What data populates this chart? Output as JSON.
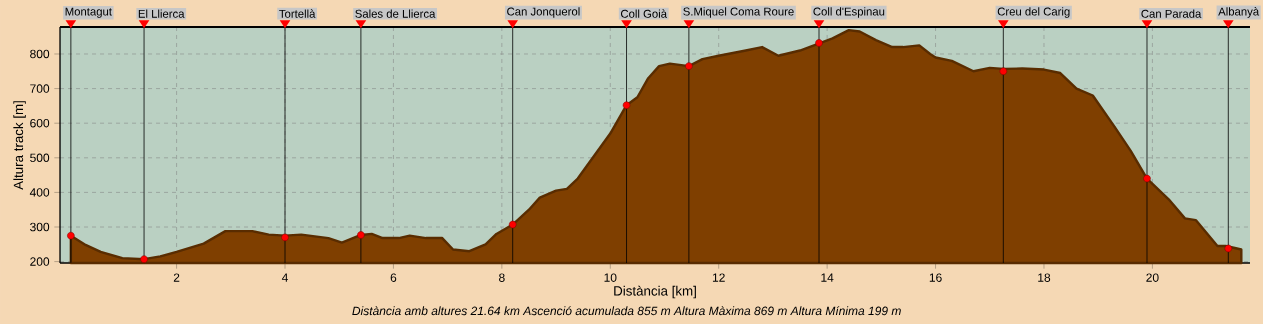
{
  "chart_data": {
    "type": "area",
    "xlabel": "Distància [km]",
    "ylabel": "Altura track [m]",
    "xlim": [
      -0.15,
      21.8
    ],
    "ylim": [
      196,
      878
    ],
    "xticks": [
      2,
      4,
      6,
      8,
      10,
      12,
      14,
      16,
      18,
      20
    ],
    "yticks": [
      200,
      300,
      400,
      500,
      600,
      700,
      800
    ],
    "grid": true,
    "series": [
      {
        "color": "#7f3f00",
        "x": [
          0.05,
          0.3,
          0.6,
          1.0,
          1.4,
          1.7,
          2.0,
          2.5,
          2.9,
          3.4,
          3.7,
          4.0,
          4.3,
          4.8,
          5.05,
          5.4,
          5.6,
          5.8,
          6.1,
          6.3,
          6.6,
          6.9,
          7.1,
          7.4,
          7.7,
          7.9,
          8.2,
          8.5,
          8.7,
          9.0,
          9.2,
          9.4,
          9.7,
          10.0,
          10.3,
          10.5,
          10.7,
          10.9,
          11.1,
          11.45,
          11.7,
          12.0,
          12.5,
          12.8,
          13.1,
          13.5,
          14.1,
          14.4,
          14.6,
          14.9,
          15.2,
          15.4,
          15.7,
          15.9,
          16.0,
          16.3,
          16.7,
          17.0,
          17.25,
          17.6,
          18.0,
          18.3,
          18.6,
          18.9,
          19.3,
          19.6,
          19.9,
          20.3,
          20.6,
          20.8,
          21.2,
          21.35,
          21.5,
          21.64
        ],
        "values": [
          275,
          250,
          228,
          210,
          207,
          215,
          228,
          252,
          288,
          288,
          278,
          275,
          278,
          268,
          255,
          277,
          280,
          268,
          268,
          275,
          268,
          268,
          235,
          230,
          250,
          280,
          307,
          350,
          385,
          405,
          410,
          440,
          505,
          570,
          652,
          675,
          730,
          765,
          772,
          765,
          785,
          795,
          810,
          820,
          795,
          810,
          845,
          869,
          865,
          840,
          820,
          820,
          825,
          800,
          790,
          780,
          750,
          760,
          757,
          758,
          755,
          745,
          700,
          680,
          590,
          520,
          440,
          380,
          325,
          320,
          245,
          245,
          240,
          235
        ]
      },
      {
        "type": "scatter",
        "marker": "circle",
        "color": "#ff0000",
        "x": [
          0.05,
          1.4,
          4.0,
          5.4,
          8.2,
          10.3,
          11.45,
          13.85,
          17.25,
          19.9,
          21.4
        ],
        "values": [
          275,
          207,
          270,
          277,
          307,
          652,
          765,
          832,
          750,
          440,
          238
        ]
      }
    ],
    "ref_lines": [
      {
        "axis": "x",
        "value": 0.05,
        "label": "Montagut",
        "color": "#000000"
      },
      {
        "axis": "x",
        "value": 1.4,
        "label": "El Llierca",
        "color": "#000000"
      },
      {
        "axis": "x",
        "value": 4.0,
        "label": "Tortellà",
        "color": "#000000"
      },
      {
        "axis": "x",
        "value": 5.4,
        "label": "Sales de Llierca",
        "color": "#000000"
      },
      {
        "axis": "x",
        "value": 8.2,
        "label": "Can Jonquerol",
        "color": "#000000"
      },
      {
        "axis": "x",
        "value": 10.3,
        "label": "Coll Goià",
        "color": "#000000"
      },
      {
        "axis": "x",
        "value": 11.45,
        "label": "S.Miquel Coma Roure",
        "color": "#000000"
      },
      {
        "axis": "x",
        "value": 13.85,
        "label": "Coll d'Espinau",
        "color": "#000000"
      },
      {
        "axis": "x",
        "value": 17.25,
        "label": "Creu del Carig",
        "color": "#000000"
      },
      {
        "axis": "x",
        "value": 19.9,
        "label": "Can Parada",
        "color": "#000000"
      },
      {
        "axis": "x",
        "value": 21.4,
        "label": "Albanyà",
        "color": "#000000"
      }
    ],
    "annotations": [
      "Distància amb altures 21.64 km   Ascenció acumulada 855 m   Altura Màxima 869 m   Altura Mínima 199 m"
    ]
  }
}
